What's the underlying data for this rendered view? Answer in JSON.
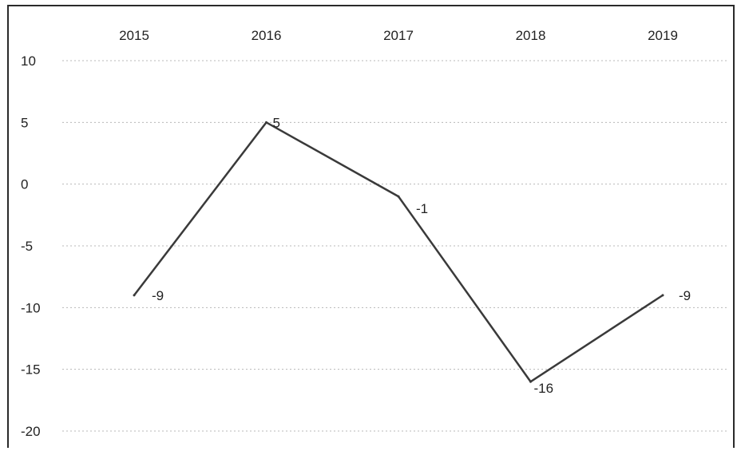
{
  "chart_data": {
    "type": "line",
    "categories": [
      "2015",
      "2016",
      "2017",
      "2018",
      "2019"
    ],
    "values": [
      -9,
      5,
      -1,
      -16,
      -9
    ],
    "data_labels": [
      "-9",
      "5",
      "-1",
      "-16",
      "-9"
    ],
    "y_ticks": [
      "10",
      "5",
      "0",
      "-5",
      "-10",
      "-15",
      "-20"
    ],
    "ylim": [
      -20,
      10
    ],
    "x_axis_position": "top",
    "grid": true,
    "legend": "none",
    "colors": {
      "line": "#3a3a3a",
      "grid": "#b8b8b8",
      "text": "#222222"
    }
  }
}
